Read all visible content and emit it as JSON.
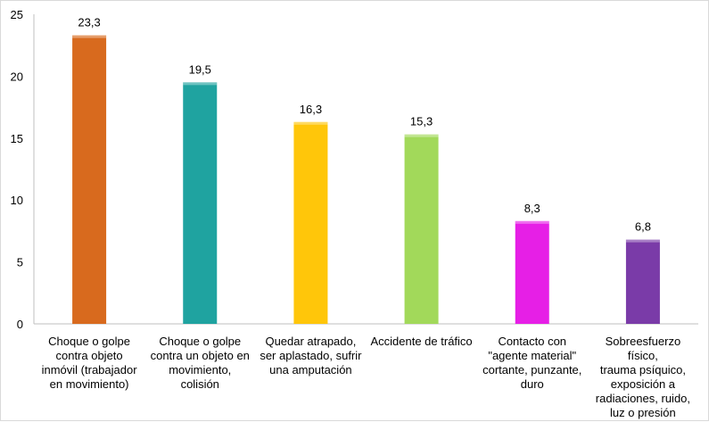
{
  "chart_data": {
    "type": "bar",
    "categories": [
      "Choque o golpe\ncontra objeto\ninmóvil  (trabajador\nen movimiento)",
      "Choque o golpe\ncontra un objeto en\nmovimiento,\ncolisión",
      "Quedar atrapado,\nser aplastado, sufrir\nuna amputación",
      "Accidente de tráfico",
      "Contacto con\n\"agente material\"\ncortante, punzante,\nduro",
      "Sobreesfuerzo físico,\ntrauma psíquico,\nexposición a\nradiaciones, ruido,\nluz o presión"
    ],
    "values": [
      23.3,
      19.5,
      16.3,
      15.3,
      8.3,
      6.8
    ],
    "data_labels": [
      "23,3",
      "19,5",
      "16,3",
      "15,3",
      "8,3",
      "6,8"
    ],
    "bar_colors": [
      "#D86A1E",
      "#1FA3A0",
      "#FFC60A",
      "#A2D95A",
      "#E61FE6",
      "#7A3BA8"
    ],
    "yticks": [
      0,
      5,
      10,
      15,
      20,
      25
    ],
    "ylim": [
      0,
      25
    ],
    "grid": false,
    "legend": "none",
    "title": "",
    "xlabel": "",
    "ylabel": ""
  }
}
